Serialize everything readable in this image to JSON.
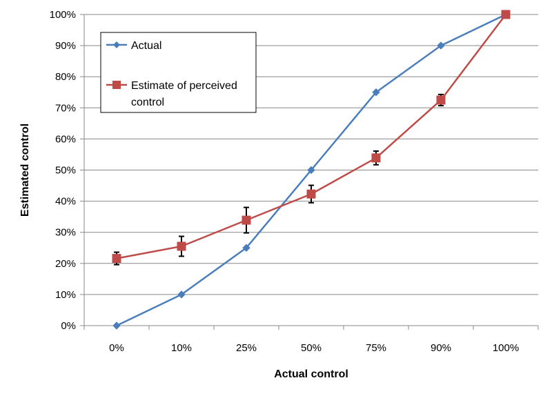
{
  "chart_data": {
    "type": "line",
    "categories": [
      "0%",
      "10%",
      "25%",
      "50%",
      "75%",
      "90%",
      "100%"
    ],
    "xlabel": "Actual control",
    "ylabel": "Estimated control",
    "ylim": [
      0,
      100
    ],
    "y_ticks": [
      "0%",
      "10%",
      "20%",
      "30%",
      "40%",
      "50%",
      "60%",
      "70%",
      "80%",
      "90%",
      "100%"
    ],
    "grid": "horizontal",
    "legend_position": "top-left",
    "series": [
      {
        "name": "Actual",
        "color": "#4a7ebb",
        "marker": "diamond",
        "values": [
          0,
          10,
          25,
          50,
          75,
          90,
          100
        ]
      },
      {
        "name": "Estimate of perceived control",
        "color": "#be4b48",
        "marker": "square",
        "values": [
          21.6,
          25.5,
          33.9,
          42.3,
          53.9,
          72.5,
          100
        ],
        "error": [
          2,
          3.2,
          4.1,
          2.8,
          2.2,
          1.8,
          0
        ]
      }
    ]
  }
}
